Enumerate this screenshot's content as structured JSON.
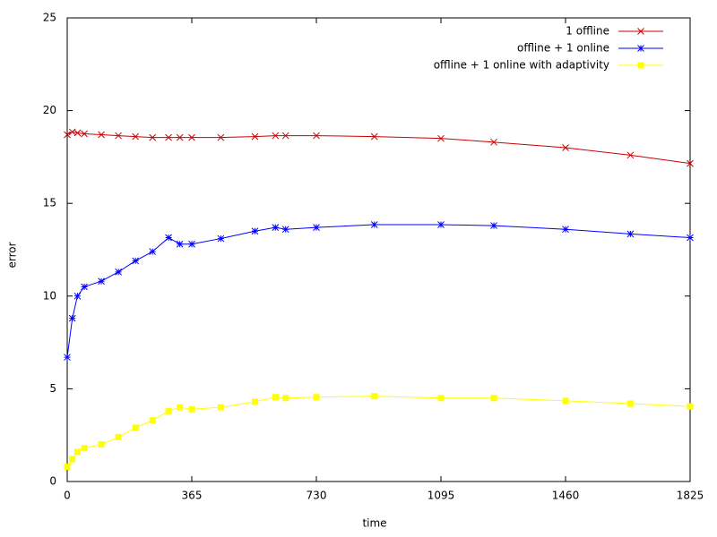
{
  "chart_data": {
    "type": "line",
    "xlabel": "time",
    "ylabel": "error",
    "x": [
      0,
      15,
      30,
      50,
      100,
      150,
      200,
      250,
      297,
      330,
      365,
      450,
      550,
      610,
      640,
      730,
      900,
      1095,
      1250,
      1460,
      1650,
      1825
    ],
    "series": [
      {
        "name": "1 offline",
        "color": "#cc0000",
        "marker": "x",
        "values": [
          18.7,
          18.85,
          18.8,
          18.75,
          18.7,
          18.65,
          18.6,
          18.55,
          18.55,
          18.55,
          18.55,
          18.55,
          18.6,
          18.65,
          18.65,
          18.65,
          18.6,
          18.5,
          18.3,
          18.0,
          17.6,
          17.15
        ]
      },
      {
        "name": "offline + 1 online",
        "color": "#0000ff",
        "marker": "star",
        "values": [
          6.7,
          8.8,
          10.0,
          10.5,
          10.8,
          11.3,
          11.9,
          12.4,
          13.15,
          12.8,
          12.8,
          13.1,
          13.5,
          13.7,
          13.6,
          13.7,
          13.85,
          13.85,
          13.8,
          13.6,
          13.35,
          13.15
        ]
      },
      {
        "name": "offline + 1 online with adaptivity",
        "color": "#ffff00",
        "marker": "square",
        "values": [
          0.8,
          1.2,
          1.6,
          1.8,
          2.0,
          2.4,
          2.9,
          3.3,
          3.8,
          4.0,
          3.9,
          4.0,
          4.3,
          4.55,
          4.5,
          4.55,
          4.6,
          4.5,
          4.5,
          4.35,
          4.2,
          4.05
        ]
      }
    ],
    "xlim": [
      0,
      1825
    ],
    "xticks": [
      0,
      365,
      730,
      1095,
      1460,
      1825
    ],
    "ylim": [
      0,
      25
    ],
    "yticks": [
      0,
      5,
      10,
      15,
      20,
      25
    ],
    "grid": false,
    "legend": "top-right"
  }
}
